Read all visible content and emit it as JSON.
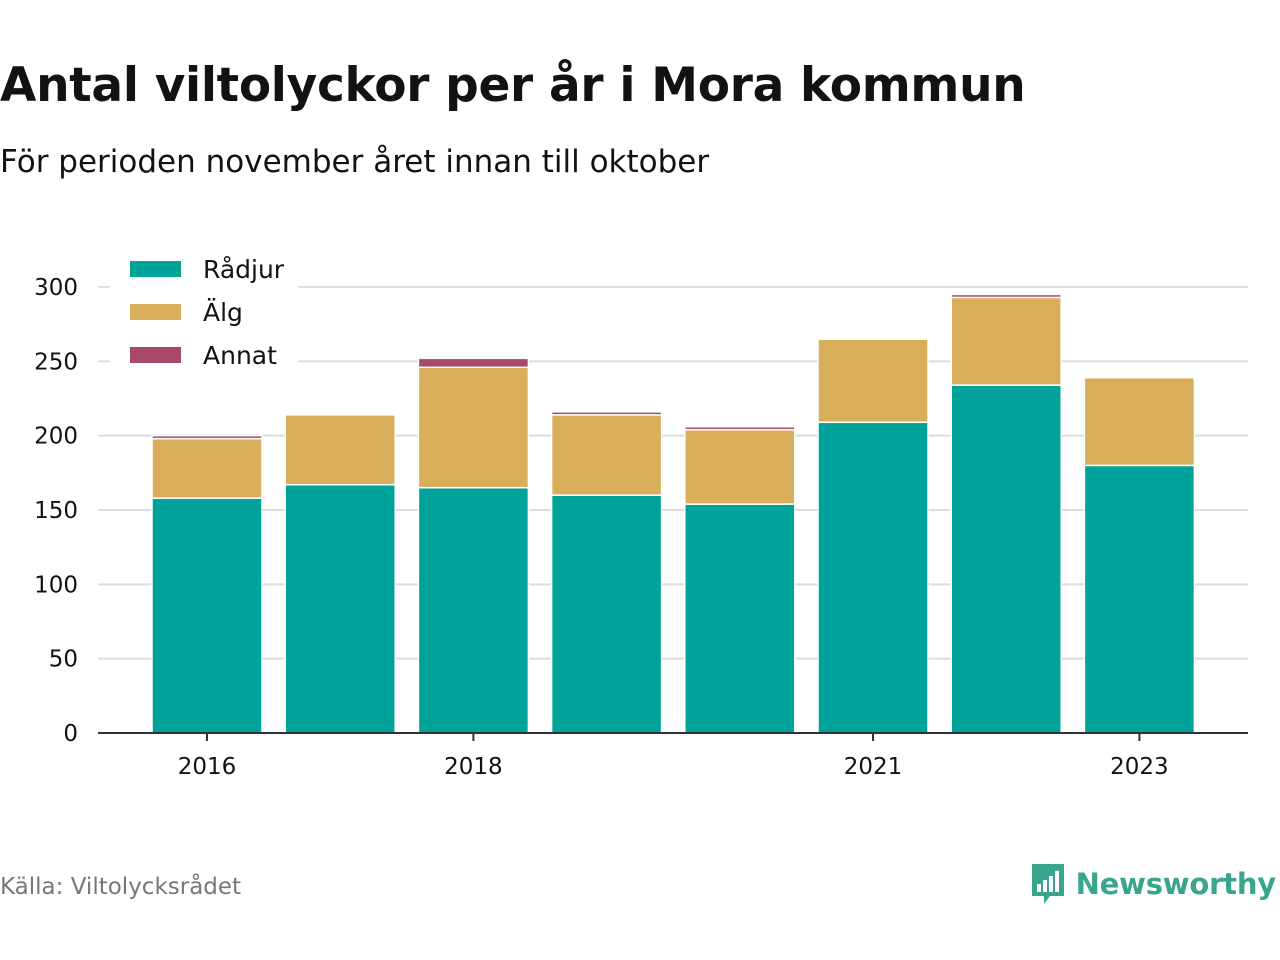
{
  "title": "Antal viltolyckor per år i Mora kommun",
  "subtitle": "För perioden november året innan till oktober",
  "source": "Källa: Viltolycksrådet",
  "brand": "Newsworthy",
  "chart_data": {
    "type": "bar",
    "stacked": true,
    "categories": [
      "2016",
      "2017",
      "2018",
      "2019",
      "2020",
      "2021",
      "2022",
      "2023"
    ],
    "x_tick_labels": [
      "2016",
      "2018",
      "2021",
      "2023"
    ],
    "series": [
      {
        "name": "Rådjur",
        "color": "#00a39a",
        "values": [
          158,
          167,
          165,
          160,
          154,
          209,
          234,
          180
        ]
      },
      {
        "name": "Älg",
        "color": "#d9ae5b",
        "values": [
          40,
          47,
          81,
          54,
          50,
          56,
          59,
          59
        ]
      },
      {
        "name": "Annat",
        "color": "#a8486b",
        "values": [
          2,
          0,
          6,
          2,
          2,
          1,
          2,
          0
        ]
      }
    ],
    "ylim": [
      0,
      300
    ],
    "yticks": [
      0,
      50,
      100,
      150,
      200,
      250,
      300
    ],
    "grid": true,
    "legend": "top-left"
  }
}
